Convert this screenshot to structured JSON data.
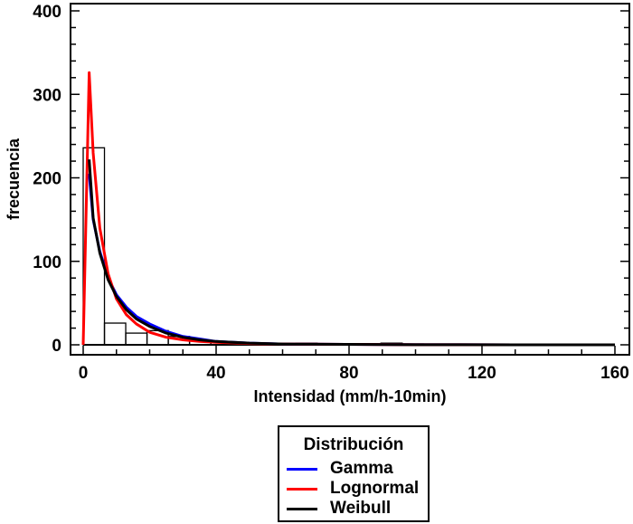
{
  "chart_data": {
    "type": "histogram+line",
    "title": "",
    "xlabel": "Intensidad (mm/h-10min)",
    "ylabel": "frecuencia",
    "xlim": [
      -4,
      164
    ],
    "ylim": [
      -10,
      410
    ],
    "xticks": [
      0,
      40,
      80,
      120,
      160
    ],
    "yticks": [
      0,
      100,
      200,
      300,
      400
    ],
    "grid": false,
    "legend_position": "below",
    "histogram": {
      "bin_edges": [
        0,
        6.4,
        12.8,
        19.2,
        25.6,
        32,
        38.4,
        44.8,
        51.2,
        57.6,
        64,
        70.4,
        76.8,
        83.2,
        89.6,
        96,
        102.4,
        108.8,
        115.2,
        121.6,
        128,
        134.4,
        140.8,
        147.2,
        153.6,
        160
      ],
      "counts": [
        236,
        26,
        14,
        17,
        10,
        5,
        3,
        2,
        1,
        1,
        2,
        1,
        0,
        1,
        2,
        1,
        0,
        0,
        0,
        0,
        0,
        0,
        0,
        0,
        0
      ]
    },
    "series": [
      {
        "name": "Gamma",
        "color": "#0000ff",
        "x": [
          1.8,
          3,
          5,
          7.5,
          10,
          13,
          16,
          20,
          25,
          30,
          35,
          40,
          50,
          60,
          80,
          100,
          130,
          160
        ],
        "y": [
          205,
          150,
          112,
          80,
          60,
          45,
          34,
          25,
          16,
          10,
          7,
          4,
          2,
          1,
          0.5,
          0.2,
          0,
          0
        ]
      },
      {
        "name": "Lognormal",
        "color": "#ff0000",
        "x": [
          0,
          1.8,
          3,
          5,
          7.5,
          10,
          13,
          16,
          20,
          25,
          30,
          35,
          40,
          50,
          60,
          80,
          100,
          130,
          160
        ],
        "y": [
          0,
          326,
          230,
          140,
          85,
          55,
          36,
          25,
          15,
          9,
          6,
          4,
          3,
          1.5,
          1,
          0.5,
          0.2,
          0,
          0
        ]
      },
      {
        "name": "Weibull",
        "color": "#000000",
        "x": [
          1.8,
          3,
          5,
          7.5,
          10,
          13,
          16,
          20,
          25,
          30,
          35,
          40,
          50,
          60,
          80,
          100,
          130,
          160
        ],
        "y": [
          222,
          152,
          110,
          78,
          58,
          42,
          31,
          22,
          14,
          9,
          6,
          4,
          2,
          1,
          0.5,
          0.2,
          0,
          0
        ]
      }
    ]
  },
  "legend": {
    "title": "Distribución",
    "items": [
      {
        "label": "Gamma",
        "color": "#0000ff"
      },
      {
        "label": "Lognormal",
        "color": "#ff0000"
      },
      {
        "label": "Weibull",
        "color": "#000000"
      }
    ]
  }
}
